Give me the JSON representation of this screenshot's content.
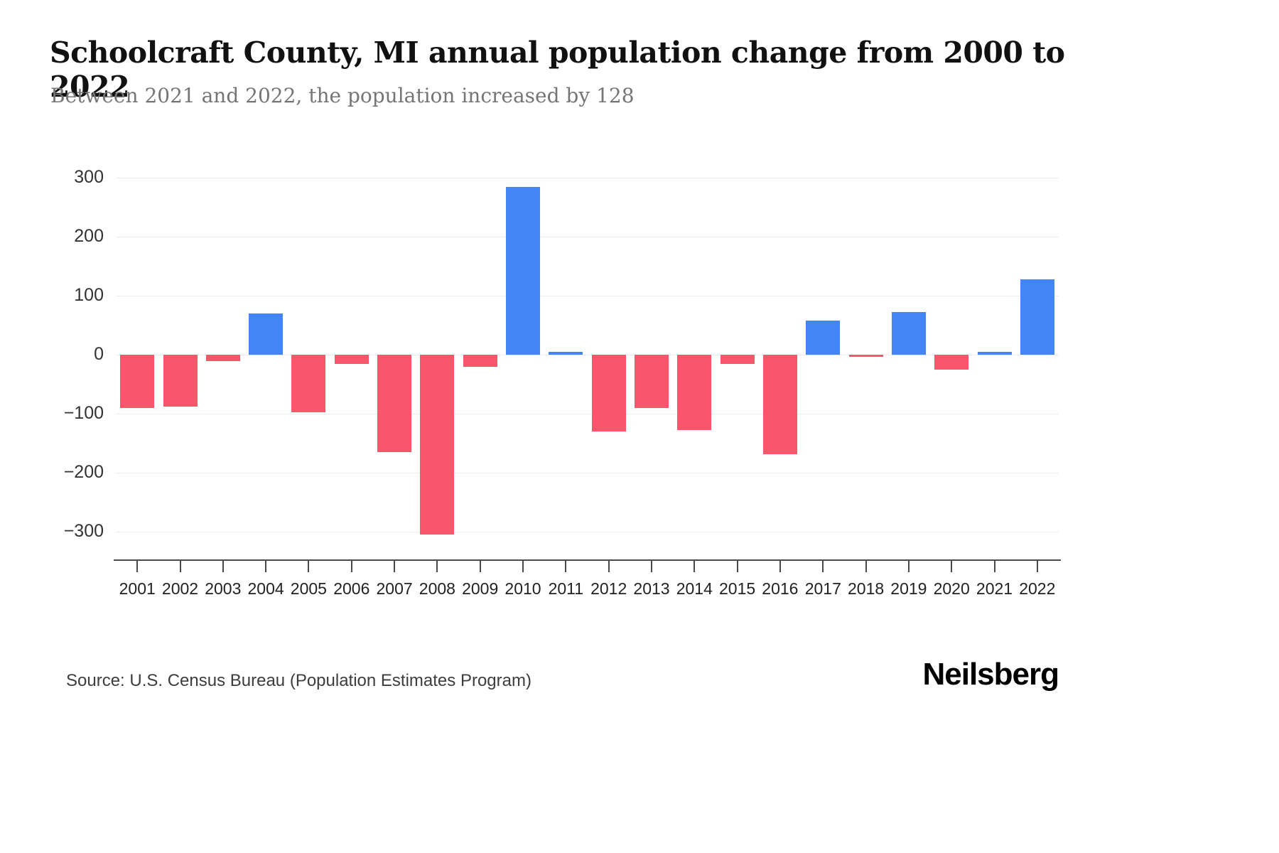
{
  "header": {
    "title": "Schoolcraft County, MI annual population change from 2000 to 2022",
    "subtitle": "Between 2021 and 2022, the population increased by 128"
  },
  "chart_data": {
    "type": "bar",
    "title": "Schoolcraft County, MI annual population change from 2000 to 2022",
    "categories": [
      "2001",
      "2002",
      "2003",
      "2004",
      "2005",
      "2006",
      "2007",
      "2008",
      "2009",
      "2010",
      "2011",
      "2012",
      "2013",
      "2014",
      "2015",
      "2016",
      "2017",
      "2018",
      "2019",
      "2020",
      "2021",
      "2022"
    ],
    "values": [
      -90,
      -88,
      -10,
      70,
      -97,
      -15,
      -165,
      -305,
      -20,
      285,
      5,
      -130,
      -90,
      -128,
      -15,
      -168,
      58,
      -3,
      73,
      -25,
      5,
      128
    ],
    "xlabel": "",
    "ylabel": "",
    "ylim": [
      -346,
      310
    ],
    "yticks": [
      {
        "value": 300,
        "label": "300"
      },
      {
        "value": 200,
        "label": "200"
      },
      {
        "value": 100,
        "label": "100"
      },
      {
        "value": 0,
        "label": "0"
      },
      {
        "value": -100,
        "label": "−100"
      },
      {
        "value": -200,
        "label": "−200"
      },
      {
        "value": -300,
        "label": "−300"
      }
    ],
    "grid": "horizontal",
    "legend": "none",
    "colors": {
      "positive": "#4286f5",
      "negative": "#f8566b"
    }
  },
  "footer": {
    "source": "Source: U.S. Census Bureau (Population Estimates Program)",
    "brand": "Neilsberg"
  }
}
